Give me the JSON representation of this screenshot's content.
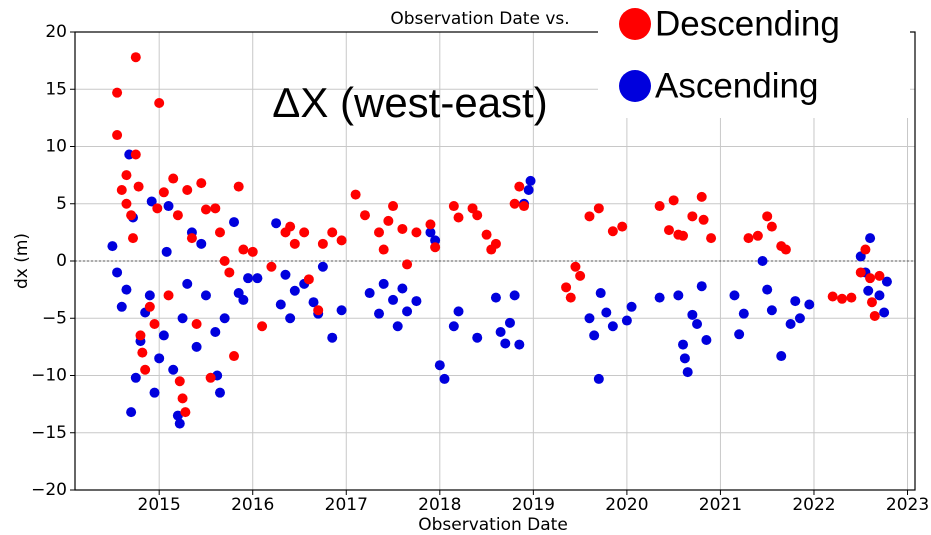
{
  "chart_data": {
    "type": "scatter",
    "title": "Observation Date vs.",
    "annotation": "ΔX (west-east)",
    "x_label": "Observation Date",
    "y_label": "dx (m)",
    "xlim": [
      2014.1,
      2023.08
    ],
    "ylim": [
      -20,
      20
    ],
    "xticks": [
      2015,
      2016,
      2017,
      2018,
      2019,
      2020,
      2021,
      2022,
      2023
    ],
    "yticks": [
      {
        "value": -20,
        "label": "−20"
      },
      {
        "value": -15,
        "label": "−15"
      },
      {
        "value": -10,
        "label": "−10"
      },
      {
        "value": -5,
        "label": "−5"
      },
      0,
      5,
      10,
      15,
      20
    ],
    "grid": true,
    "legend": "upper right",
    "series": [
      {
        "name": "Descending",
        "color": "#ff0000",
        "x": [
          2014.55,
          2014.55,
          2014.6,
          2014.65,
          2014.65,
          2014.7,
          2014.72,
          2014.75,
          2014.75,
          2014.78,
          2014.8,
          2014.82,
          2014.85,
          2014.9,
          2014.95,
          2014.98,
          2015.0,
          2015.05,
          2015.1,
          2015.15,
          2015.2,
          2015.22,
          2015.25,
          2015.28,
          2015.3,
          2015.35,
          2015.4,
          2015.45,
          2015.5,
          2015.55,
          2015.6,
          2015.65,
          2015.7,
          2015.75,
          2015.8,
          2015.85,
          2015.9,
          2016.0,
          2016.1,
          2016.2,
          2016.35,
          2016.4,
          2016.45,
          2016.55,
          2016.6,
          2016.7,
          2016.75,
          2016.85,
          2016.95,
          2017.1,
          2017.2,
          2017.35,
          2017.4,
          2017.45,
          2017.5,
          2017.6,
          2017.65,
          2017.75,
          2017.9,
          2017.95,
          2018.15,
          2018.2,
          2018.35,
          2018.4,
          2018.5,
          2018.55,
          2018.6,
          2018.8,
          2018.85,
          2018.9,
          2019.35,
          2019.4,
          2019.45,
          2019.5,
          2019.6,
          2019.7,
          2019.85,
          2019.95,
          2020.35,
          2020.45,
          2020.5,
          2020.55,
          2020.6,
          2020.7,
          2020.8,
          2020.82,
          2020.9,
          2021.3,
          2021.4,
          2021.5,
          2021.55,
          2021.65,
          2021.7,
          2022.2,
          2022.3,
          2022.4,
          2022.5,
          2022.55,
          2022.6,
          2022.62,
          2022.65,
          2022.7
        ],
        "values": [
          14.7,
          11,
          6.2,
          7.5,
          5,
          4,
          2,
          17.8,
          9.3,
          6.5,
          -6.5,
          -8,
          -9.5,
          -4,
          -5.5,
          4.6,
          13.8,
          6,
          -3,
          7.2,
          4,
          -10.5,
          -12,
          -13.2,
          6.2,
          2,
          -5.5,
          6.8,
          4.5,
          -10.2,
          4.6,
          2.5,
          0,
          -1,
          -8.3,
          6.5,
          1,
          0.8,
          -5.7,
          -0.5,
          2.5,
          3,
          1.5,
          2.5,
          -1.6,
          -4.3,
          1.5,
          2.5,
          1.8,
          5.8,
          4,
          2.5,
          1,
          3.5,
          4.8,
          2.8,
          -0.3,
          2.5,
          3.2,
          1.2,
          4.8,
          3.8,
          4.6,
          4,
          2.3,
          1,
          1.5,
          5,
          6.5,
          4.8,
          -2.3,
          -3.2,
          -0.5,
          -1.3,
          3.9,
          4.6,
          2.6,
          3,
          4.8,
          2.7,
          5.3,
          2.3,
          2.2,
          3.9,
          5.6,
          3.6,
          2,
          2,
          2.2,
          3.9,
          3,
          1.3,
          1,
          -3.1,
          -3.3,
          -3.2,
          -1,
          1,
          -1.5,
          -3.6,
          -4.8,
          -1.3
        ]
      },
      {
        "name": "Ascending",
        "color": "#0000dd",
        "x": [
          2014.5,
          2014.55,
          2014.6,
          2014.65,
          2014.68,
          2014.7,
          2014.72,
          2014.75,
          2014.8,
          2014.85,
          2014.9,
          2014.92,
          2014.95,
          2015.0,
          2015.05,
          2015.08,
          2015.1,
          2015.15,
          2015.2,
          2015.22,
          2015.25,
          2015.3,
          2015.35,
          2015.4,
          2015.45,
          2015.5,
          2015.6,
          2015.62,
          2015.65,
          2015.7,
          2015.8,
          2015.85,
          2015.9,
          2015.95,
          2016.05,
          2016.25,
          2016.3,
          2016.35,
          2016.4,
          2016.45,
          2016.55,
          2016.65,
          2016.7,
          2016.75,
          2016.85,
          2016.95,
          2017.25,
          2017.35,
          2017.4,
          2017.5,
          2017.55,
          2017.6,
          2017.65,
          2017.75,
          2017.9,
          2017.95,
          2018.0,
          2018.05,
          2018.15,
          2018.2,
          2018.4,
          2018.6,
          2018.65,
          2018.7,
          2018.75,
          2018.8,
          2018.85,
          2018.9,
          2018.95,
          2018.97,
          2019.6,
          2019.65,
          2019.7,
          2019.72,
          2019.78,
          2019.85,
          2020.0,
          2020.05,
          2020.35,
          2020.55,
          2020.6,
          2020.62,
          2020.65,
          2020.7,
          2020.75,
          2020.8,
          2020.85,
          2021.15,
          2021.2,
          2021.25,
          2021.45,
          2021.5,
          2021.55,
          2021.65,
          2021.75,
          2021.8,
          2021.85,
          2021.95,
          2022.5,
          2022.55,
          2022.58,
          2022.6,
          2022.7,
          2022.75,
          2022.78
        ],
        "values": [
          1.3,
          -1,
          -4,
          -2.5,
          9.3,
          -13.2,
          3.8,
          -10.2,
          -7,
          -4.5,
          -3,
          5.2,
          -11.5,
          -8.5,
          -6.5,
          0.8,
          4.8,
          -9.5,
          -13.5,
          -14.2,
          -5,
          -2,
          2.5,
          -7.5,
          1.5,
          -3,
          -6.2,
          -10,
          -11.5,
          -5,
          3.4,
          -2.8,
          -3.4,
          -1.5,
          -1.5,
          3.3,
          -3.8,
          -1.2,
          -5,
          -2.6,
          -2,
          -3.6,
          -4.6,
          -0.5,
          -6.7,
          -4.3,
          -2.8,
          -4.6,
          -2,
          -3.4,
          -5.7,
          -2.4,
          -4.4,
          -3.5,
          2.5,
          1.8,
          -9.1,
          -10.3,
          -5.7,
          -4.4,
          -6.7,
          -3.2,
          -6.2,
          -7.2,
          -5.4,
          -3,
          -7.3,
          5,
          6.2,
          7,
          -5,
          -6.5,
          -10.3,
          -2.8,
          -4.5,
          -5.7,
          -5.2,
          -4,
          -3.2,
          -3,
          -7.3,
          -8.5,
          -9.7,
          -4.7,
          -5.5,
          -2.2,
          -6.9,
          -3,
          -6.4,
          -4.6,
          0,
          -2.5,
          -4.3,
          -8.3,
          -5.5,
          -3.5,
          -5,
          -3.8,
          0.4,
          -1,
          -2.6,
          2,
          -3,
          -4.5,
          -1.8
        ]
      }
    ]
  }
}
